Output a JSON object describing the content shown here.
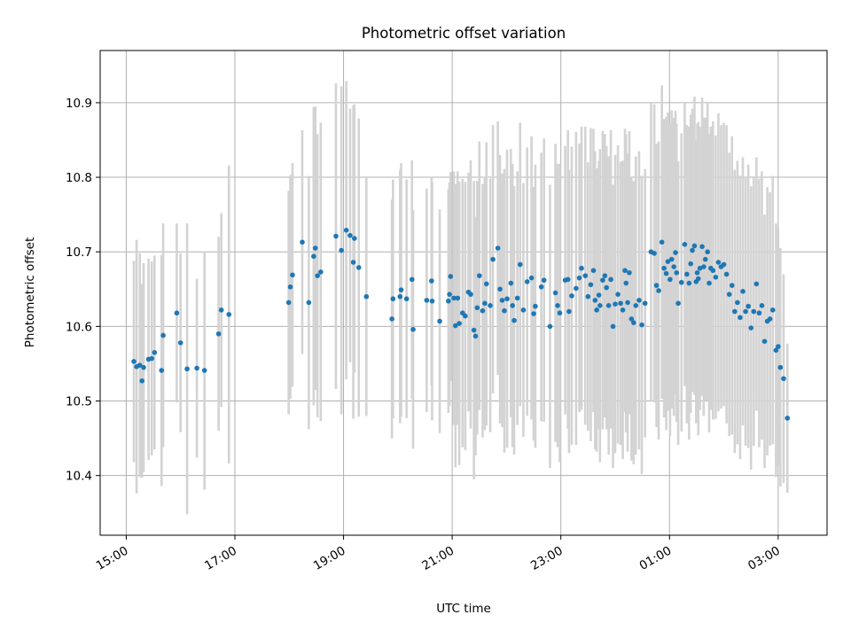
{
  "chart_data": {
    "type": "scatter",
    "title": "Photometric offset variation",
    "xlabel": "UTC time",
    "ylabel": "Photometric offset",
    "x_unit": "hours (UTC, continuing past midnight)",
    "xlim": [
      14.52,
      27.9
    ],
    "ylim": [
      10.32,
      10.97
    ],
    "yticks": [
      10.4,
      10.5,
      10.6,
      10.7,
      10.8,
      10.9
    ],
    "ytick_labels": [
      "10.4",
      "10.5",
      "10.6",
      "10.7",
      "10.8",
      "10.9"
    ],
    "xticks": [
      15,
      17,
      19,
      21,
      23,
      25,
      27
    ],
    "xtick_labels": [
      "15:00",
      "17:00",
      "19:00",
      "21:00",
      "23:00",
      "01:00",
      "03:00"
    ],
    "grid": true,
    "point_color": "#1f77b4",
    "errorbar_color": "#d3d3d3",
    "points": [
      [
        15.14,
        10.553,
        0.135
      ],
      [
        15.19,
        10.546,
        0.17
      ],
      [
        15.25,
        10.548,
        0.15
      ],
      [
        15.29,
        10.527,
        0.13
      ],
      [
        15.32,
        10.545,
        0.14
      ],
      [
        15.41,
        10.556,
        0.135
      ],
      [
        15.47,
        10.557,
        0.13
      ],
      [
        15.52,
        10.565,
        0.13
      ],
      [
        15.65,
        10.541,
        0.155
      ],
      [
        15.68,
        10.588,
        0.15
      ],
      [
        15.93,
        10.618,
        0.12
      ],
      [
        16.0,
        10.578,
        0.12
      ],
      [
        16.12,
        10.543,
        0.195
      ],
      [
        16.3,
        10.544,
        0.12
      ],
      [
        16.44,
        10.541,
        0.16
      ],
      [
        16.7,
        10.59,
        0.13
      ],
      [
        16.75,
        10.622,
        0.13
      ],
      [
        16.89,
        10.616,
        0.2
      ],
      [
        17.99,
        10.632,
        0.15
      ],
      [
        18.02,
        10.653,
        0.15
      ],
      [
        18.06,
        10.669,
        0.15
      ],
      [
        18.24,
        10.713,
        0.15
      ],
      [
        18.36,
        10.632,
        0.17
      ],
      [
        18.45,
        10.694,
        0.2
      ],
      [
        18.48,
        10.705,
        0.19
      ],
      [
        18.52,
        10.668,
        0.19
      ],
      [
        18.58,
        10.673,
        0.2
      ],
      [
        18.86,
        10.721,
        0.205
      ],
      [
        18.96,
        10.702,
        0.22
      ],
      [
        19.05,
        10.729,
        0.2
      ],
      [
        19.12,
        10.722,
        0.17
      ],
      [
        19.18,
        10.686,
        0.21
      ],
      [
        19.2,
        10.718,
        0.18
      ],
      [
        19.28,
        10.679,
        0.2
      ],
      [
        19.42,
        10.64,
        0.16
      ],
      [
        19.89,
        10.61,
        0.16
      ],
      [
        19.91,
        10.637,
        0.16
      ],
      [
        20.04,
        10.64,
        0.17
      ],
      [
        20.06,
        10.649,
        0.17
      ],
      [
        20.16,
        10.637,
        0.16
      ],
      [
        20.26,
        10.663,
        0.16
      ],
      [
        20.28,
        10.596,
        0.16
      ],
      [
        20.53,
        10.635,
        0.15
      ],
      [
        20.63,
        10.634,
        0.16
      ],
      [
        20.62,
        10.661,
        0.14
      ],
      [
        20.77,
        10.607,
        0.15
      ],
      [
        20.93,
        10.634,
        0.15
      ],
      [
        20.95,
        10.643,
        0.15
      ],
      [
        20.97,
        10.667,
        0.14
      ],
      [
        21.03,
        10.638,
        0.17
      ],
      [
        21.06,
        10.601,
        0.19
      ],
      [
        21.1,
        10.638,
        0.17
      ],
      [
        21.13,
        10.604,
        0.19
      ],
      [
        21.19,
        10.618,
        0.18
      ],
      [
        21.24,
        10.614,
        0.18
      ],
      [
        21.3,
        10.646,
        0.16
      ],
      [
        21.34,
        10.643,
        0.18
      ],
      [
        21.4,
        10.595,
        0.2
      ],
      [
        21.43,
        10.587,
        0.16
      ],
      [
        21.46,
        10.625,
        0.17
      ],
      [
        21.5,
        10.668,
        0.18
      ],
      [
        21.56,
        10.621,
        0.17
      ],
      [
        21.6,
        10.631,
        0.17
      ],
      [
        21.63,
        10.657,
        0.19
      ],
      [
        21.7,
        10.628,
        0.17
      ],
      [
        21.75,
        10.69,
        0.18
      ],
      [
        21.84,
        10.705,
        0.17
      ],
      [
        21.88,
        10.65,
        0.18
      ],
      [
        21.92,
        10.635,
        0.17
      ],
      [
        21.96,
        10.621,
        0.19
      ],
      [
        22.01,
        10.637,
        0.2
      ],
      [
        22.08,
        10.658,
        0.18
      ],
      [
        22.11,
        10.628,
        0.19
      ],
      [
        22.14,
        10.608,
        0.18
      ],
      [
        22.2,
        10.638,
        0.17
      ],
      [
        22.25,
        10.683,
        0.19
      ],
      [
        22.31,
        10.622,
        0.17
      ],
      [
        22.38,
        10.66,
        0.18
      ],
      [
        22.46,
        10.665,
        0.19
      ],
      [
        22.5,
        10.617,
        0.17
      ],
      [
        22.53,
        10.627,
        0.19
      ],
      [
        22.64,
        10.653,
        0.18
      ],
      [
        22.69,
        10.662,
        0.19
      ],
      [
        22.8,
        10.6,
        0.19
      ],
      [
        22.9,
        10.645,
        0.2
      ],
      [
        22.94,
        10.628,
        0.19
      ],
      [
        22.98,
        10.618,
        0.2
      ],
      [
        23.08,
        10.662,
        0.18
      ],
      [
        23.13,
        10.663,
        0.2
      ],
      [
        23.15,
        10.62,
        0.19
      ],
      [
        23.2,
        10.641,
        0.2
      ],
      [
        23.28,
        10.651,
        0.21
      ],
      [
        23.34,
        10.665,
        0.18
      ],
      [
        23.38,
        10.678,
        0.19
      ],
      [
        23.45,
        10.668,
        0.2
      ],
      [
        23.5,
        10.64,
        0.18
      ],
      [
        23.55,
        10.656,
        0.21
      ],
      [
        23.6,
        10.675,
        0.19
      ],
      [
        23.63,
        10.635,
        0.2
      ],
      [
        23.66,
        10.622,
        0.19
      ],
      [
        23.7,
        10.642,
        0.18
      ],
      [
        23.72,
        10.628,
        0.21
      ],
      [
        23.77,
        10.662,
        0.2
      ],
      [
        23.81,
        10.668,
        0.19
      ],
      [
        23.84,
        10.652,
        0.19
      ],
      [
        23.88,
        10.628,
        0.2
      ],
      [
        23.92,
        10.663,
        0.2
      ],
      [
        23.96,
        10.6,
        0.19
      ],
      [
        24.0,
        10.63,
        0.2
      ],
      [
        24.05,
        10.643,
        0.2
      ],
      [
        24.1,
        10.631,
        0.19
      ],
      [
        24.14,
        10.622,
        0.2
      ],
      [
        24.18,
        10.675,
        0.19
      ],
      [
        24.2,
        10.658,
        0.2
      ],
      [
        24.23,
        10.632,
        0.2
      ],
      [
        24.26,
        10.672,
        0.19
      ],
      [
        24.3,
        10.61,
        0.19
      ],
      [
        24.34,
        10.605,
        0.19
      ],
      [
        24.38,
        10.628,
        0.2
      ],
      [
        24.44,
        10.635,
        0.2
      ],
      [
        24.49,
        10.602,
        0.2
      ],
      [
        24.55,
        10.631,
        0.18
      ],
      [
        24.66,
        10.7,
        0.2
      ],
      [
        24.72,
        10.698,
        0.2
      ],
      [
        24.76,
        10.655,
        0.19
      ],
      [
        24.8,
        10.648,
        0.2
      ],
      [
        24.86,
        10.713,
        0.21
      ],
      [
        24.9,
        10.678,
        0.2
      ],
      [
        24.94,
        10.671,
        0.21
      ],
      [
        24.97,
        10.687,
        0.2
      ],
      [
        25.01,
        10.663,
        0.21
      ],
      [
        25.04,
        10.69,
        0.2
      ],
      [
        25.08,
        10.68,
        0.2
      ],
      [
        25.11,
        10.699,
        0.19
      ],
      [
        25.13,
        10.672,
        0.2
      ],
      [
        25.16,
        10.631,
        0.19
      ],
      [
        25.22,
        10.659,
        0.2
      ],
      [
        25.28,
        10.71,
        0.19
      ],
      [
        25.32,
        10.67,
        0.2
      ],
      [
        25.36,
        10.658,
        0.21
      ],
      [
        25.39,
        10.684,
        0.2
      ],
      [
        25.42,
        10.702,
        0.19
      ],
      [
        25.46,
        10.708,
        0.2
      ],
      [
        25.49,
        10.66,
        0.19
      ],
      [
        25.51,
        10.672,
        0.2
      ],
      [
        25.53,
        10.664,
        0.21
      ],
      [
        25.56,
        10.678,
        0.19
      ],
      [
        25.6,
        10.707,
        0.2
      ],
      [
        25.63,
        10.68,
        0.2
      ],
      [
        25.66,
        10.69,
        0.19
      ],
      [
        25.7,
        10.7,
        0.2
      ],
      [
        25.73,
        10.658,
        0.2
      ],
      [
        25.76,
        10.678,
        0.19
      ],
      [
        25.8,
        10.675,
        0.2
      ],
      [
        25.85,
        10.666,
        0.19
      ],
      [
        25.9,
        10.686,
        0.2
      ],
      [
        25.95,
        10.68,
        0.19
      ],
      [
        26.0,
        10.683,
        0.19
      ],
      [
        26.05,
        10.67,
        0.2
      ],
      [
        26.1,
        10.643,
        0.19
      ],
      [
        26.15,
        10.655,
        0.2
      ],
      [
        26.2,
        10.62,
        0.19
      ],
      [
        26.25,
        10.632,
        0.19
      ],
      [
        26.3,
        10.612,
        0.19
      ],
      [
        26.35,
        10.647,
        0.18
      ],
      [
        26.4,
        10.62,
        0.18
      ],
      [
        26.45,
        10.627,
        0.19
      ],
      [
        26.5,
        10.598,
        0.19
      ],
      [
        26.55,
        10.62,
        0.18
      ],
      [
        26.6,
        10.657,
        0.17
      ],
      [
        26.65,
        10.618,
        0.18
      ],
      [
        26.7,
        10.628,
        0.18
      ],
      [
        26.75,
        10.58,
        0.17
      ],
      [
        26.8,
        10.607,
        0.18
      ],
      [
        26.85,
        10.61,
        0.17
      ],
      [
        26.9,
        10.622,
        0.18
      ],
      [
        26.96,
        10.568,
        0.17
      ],
      [
        27.0,
        10.573,
        0.16
      ],
      [
        27.04,
        10.545,
        0.16
      ],
      [
        27.1,
        10.53,
        0.14
      ],
      [
        27.17,
        10.477,
        0.1
      ]
    ]
  }
}
